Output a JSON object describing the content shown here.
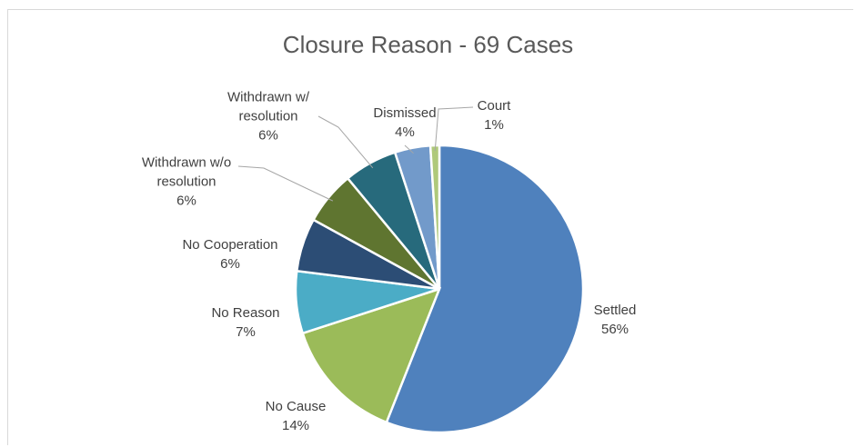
{
  "chart_data": {
    "type": "pie",
    "title": "Closure Reason - 69 Cases",
    "categories": [
      "Settled",
      "No Cause",
      "No Reason",
      "No Cooperation",
      "Withdrawn w/o resolution",
      "Withdrawn w/ resolution",
      "Dismissed",
      "Court"
    ],
    "values": [
      56,
      14,
      7,
      6,
      6,
      6,
      4,
      1
    ],
    "value_labels": [
      "56%",
      "14%",
      "7%",
      "6%",
      "6%",
      "6%",
      "4%",
      "1%"
    ],
    "colors": [
      "#4f81bd",
      "#9bbb59",
      "#4bacc6",
      "#2c4d75",
      "#5f7530",
      "#276a7c",
      "#729aca",
      "#afc97a"
    ]
  }
}
